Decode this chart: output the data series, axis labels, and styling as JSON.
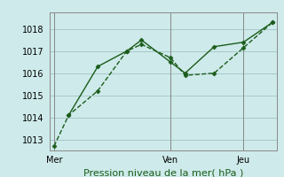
{
  "background_color": "#ceeaea",
  "grid_color": "#a8c8c8",
  "line_color": "#1a5c1a",
  "marker_color": "#1a5c1a",
  "xlabel": "Pression niveau de la mer( hPa )",
  "ylim": [
    1012.5,
    1018.75
  ],
  "yticks": [
    1013,
    1014,
    1015,
    1016,
    1017,
    1018
  ],
  "day_labels": [
    "Mer",
    "Ven",
    "Jeu"
  ],
  "day_positions": [
    0.0,
    0.533,
    0.867
  ],
  "vline_positions": [
    0.0,
    0.533,
    0.867
  ],
  "series1_x": [
    0.0,
    0.067,
    0.2,
    0.333,
    0.4,
    0.533,
    0.6,
    0.733,
    0.867,
    1.0
  ],
  "series1_y": [
    1012.7,
    1014.1,
    1015.2,
    1017.0,
    1017.3,
    1016.7,
    1015.9,
    1016.0,
    1017.15,
    1018.3
  ],
  "series2_x": [
    0.067,
    0.2,
    0.333,
    0.4,
    0.533,
    0.6,
    0.733,
    0.867,
    1.0
  ],
  "series2_y": [
    1014.1,
    1016.3,
    1017.0,
    1017.5,
    1016.5,
    1016.0,
    1017.2,
    1017.4,
    1018.3
  ],
  "xlabel_fontsize": 8,
  "tick_fontsize": 7
}
